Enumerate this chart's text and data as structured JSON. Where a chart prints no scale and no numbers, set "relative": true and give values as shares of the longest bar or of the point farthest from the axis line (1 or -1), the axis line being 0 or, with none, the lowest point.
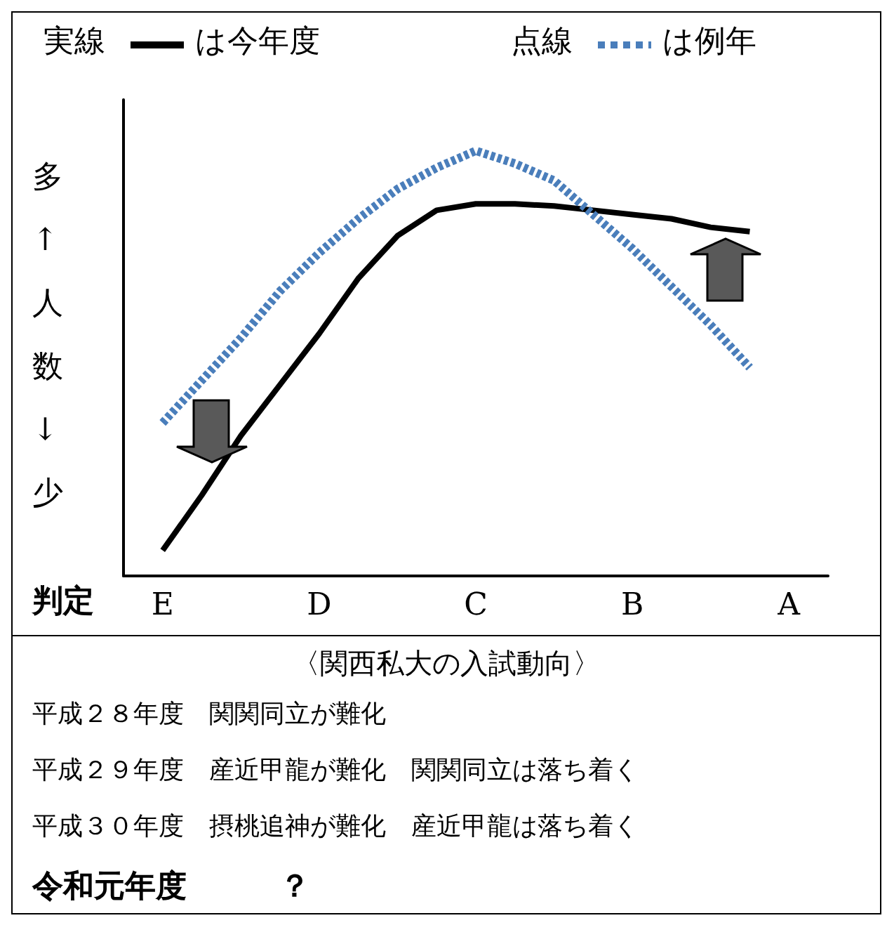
{
  "chart_data": {
    "type": "line",
    "relative": true,
    "xlabel": "判定",
    "ylabel": "多↑人数↓少",
    "legend": "top",
    "marker": "none",
    "grid": false,
    "categories": [
      null,
      "E",
      null,
      null,
      null,
      "D",
      null,
      null,
      null,
      "C",
      null,
      null,
      null,
      "B",
      null,
      null,
      null,
      "A",
      null
    ],
    "series": [
      {
        "name": "は今年度",
        "color": "#000000",
        "line_style": "solid",
        "values": [
          null,
          0.06,
          0.19,
          0.33,
          0.45,
          0.57,
          0.7,
          0.8,
          0.86,
          0.875,
          0.875,
          0.87,
          0.86,
          0.85,
          0.84,
          0.82,
          0.81,
          null,
          null
        ]
      },
      {
        "name": "は例年",
        "color": "#4a7ebb",
        "line_style": "dashed",
        "values": [
          null,
          0.36,
          0.46,
          0.56,
          0.67,
          0.76,
          0.84,
          0.91,
          0.96,
          1.0,
          0.97,
          0.93,
          0.85,
          0.77,
          0.68,
          0.59,
          0.49,
          null,
          null
        ]
      }
    ],
    "annotations": [
      "実線",
      "点線",
      "〈関西私大の入試動向〉",
      "平成２８年度　関関同立が難化",
      "平成２９年度　産近甲龍が難化　関関同立は落ち着く",
      "平成３０年度　摂桃追神が難化　産近甲龍は落ち着く",
      "令和元年度　　　？"
    ]
  }
}
